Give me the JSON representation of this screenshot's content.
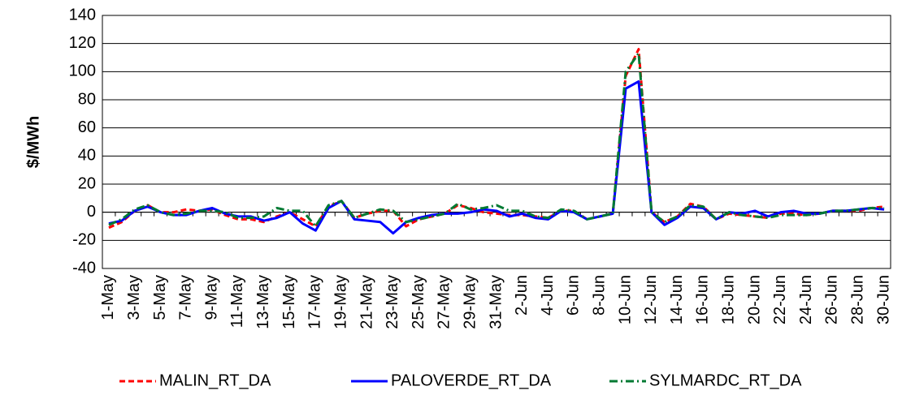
{
  "chart_data": {
    "type": "line",
    "y_label": "$/MWh",
    "categories": [
      "1-May",
      null,
      "3-May",
      null,
      "5-May",
      null,
      "7-May",
      null,
      "9-May",
      null,
      "11-May",
      null,
      "13-May",
      null,
      "15-May",
      null,
      "17-May",
      null,
      "19-May",
      null,
      "21-May",
      null,
      "23-May",
      null,
      "25-May",
      null,
      "27-May",
      null,
      "29-May",
      null,
      "31-May",
      null,
      "2-Jun",
      null,
      "4-Jun",
      null,
      "6-Jun",
      null,
      "8-Jun",
      null,
      "10-Jun",
      null,
      "12-Jun",
      null,
      "14-Jun",
      null,
      "16-Jun",
      null,
      "18-Jun",
      null,
      "20-Jun",
      null,
      "22-Jun",
      null,
      "24-Jun",
      null,
      "26-Jun",
      null,
      "28-Jun",
      null,
      "30-Jun"
    ],
    "series": [
      {
        "name": "MALIN_RT_DA",
        "color": "#ff0000",
        "style": "dashed",
        "values": [
          -11,
          -7,
          1,
          5,
          0,
          0,
          2,
          1,
          2,
          -2,
          -5,
          -5,
          -7,
          -3,
          0,
          -5,
          -10,
          4,
          8,
          -4,
          -1,
          1,
          1,
          -10,
          -5,
          -3,
          -1,
          5,
          3,
          0,
          -1,
          -2,
          -2,
          -3,
          -4,
          1,
          1,
          -5,
          -3,
          -1,
          97,
          116,
          0,
          -7,
          -3,
          6,
          4,
          -5,
          -1,
          -2,
          -3,
          -4,
          -1,
          -1,
          -2,
          -1,
          1,
          1,
          1,
          3,
          4
        ]
      },
      {
        "name": "PALOVERDE_RT_DA",
        "color": "#0000ff",
        "style": "solid",
        "values": [
          -8,
          -6,
          1,
          4,
          0,
          -2,
          -2,
          1,
          3,
          -1,
          -3,
          -3,
          -6,
          -4,
          0,
          -8,
          -13,
          3,
          8,
          -5,
          -6,
          -7,
          -15,
          -7,
          -4,
          -2,
          -1,
          -1,
          0,
          2,
          1,
          -3,
          -1,
          -4,
          -5,
          1,
          0,
          -5,
          -3,
          -1,
          88,
          93,
          0,
          -9,
          -4,
          4,
          3,
          -5,
          0,
          -1,
          1,
          -3,
          0,
          1,
          -1,
          -1,
          1,
          1,
          2,
          3,
          2
        ]
      },
      {
        "name": "SYLMARDC_RT_DA",
        "color": "#007a33",
        "style": "dash-dot",
        "values": [
          -9,
          -5,
          2,
          5,
          0,
          -2,
          -1,
          1,
          1,
          0,
          -4,
          -4,
          -3,
          3,
          1,
          1,
          -10,
          5,
          8,
          -4,
          -1,
          2,
          1,
          -7,
          -5,
          -3,
          -1,
          6,
          2,
          3,
          5,
          1,
          1,
          -3,
          -4,
          2,
          1,
          -5,
          -3,
          -1,
          100,
          113,
          0,
          -7,
          -3,
          5,
          4,
          -5,
          0,
          -2,
          -3,
          -4,
          -2,
          -2,
          -2,
          -1,
          1,
          1,
          2,
          3,
          3
        ]
      }
    ],
    "ylim": [
      -40,
      140
    ],
    "yticks": [
      -40,
      -20,
      0,
      20,
      40,
      60,
      80,
      100,
      120,
      140
    ],
    "grid": true,
    "legend": "bottom"
  }
}
